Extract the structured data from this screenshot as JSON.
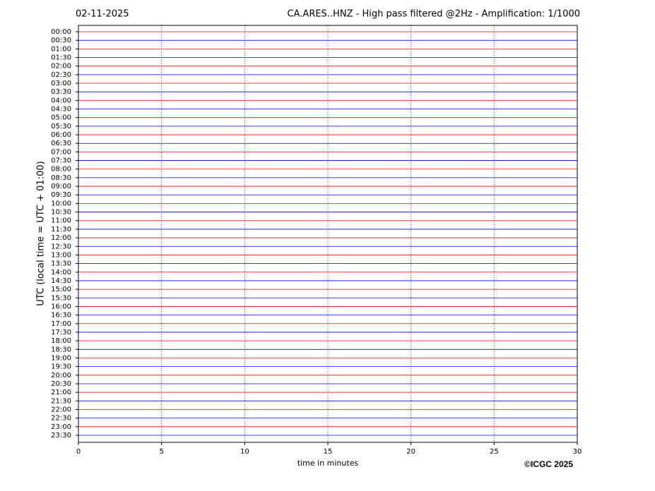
{
  "chart_data": {
    "type": "helicorder",
    "date": "02-11-2025",
    "title": "CA.ARES..HNZ - High pass filtered @2Hz - Amplification: 1/1000",
    "xlabel": "time in minutes",
    "ylabel": "UTC (local time = UTC + 01:00)",
    "credit": "©ICGC 2025",
    "categories": [
      "00:00",
      "00:30",
      "01:00",
      "01:30",
      "02:00",
      "02:30",
      "03:00",
      "03:30",
      "04:00",
      "04:30",
      "05:00",
      "05:30",
      "06:00",
      "06:30",
      "07:00",
      "07:30",
      "08:00",
      "08:30",
      "09:00",
      "09:30",
      "10:00",
      "10:30",
      "11:00",
      "11:30",
      "12:00",
      "12:30",
      "13:00",
      "13:30",
      "14:00",
      "14:30",
      "15:00",
      "15:30",
      "16:00",
      "16:30",
      "17:00",
      "17:30",
      "18:00",
      "18:30",
      "19:00",
      "19:30",
      "20:00",
      "20:30",
      "21:00",
      "21:30",
      "22:00",
      "22:30",
      "23:00",
      "23:30"
    ],
    "colors": [
      "#ff0000",
      "#0000ff"
    ],
    "xlim": [
      0,
      30
    ],
    "xticks": [
      0,
      5,
      10,
      15,
      20,
      25,
      30
    ],
    "grid": true,
    "grid_color": "#00008b"
  }
}
